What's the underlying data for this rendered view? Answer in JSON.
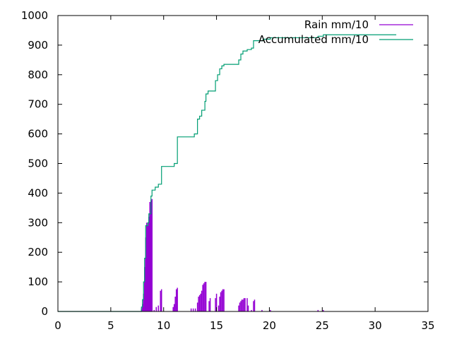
{
  "chart_data": {
    "type": "area",
    "title": "",
    "xlabel": "",
    "ylabel": "",
    "xlim": [
      0,
      35
    ],
    "ylim": [
      0,
      1000
    ],
    "x_ticks": [
      0,
      5,
      10,
      15,
      20,
      25,
      30,
      35
    ],
    "y_ticks": [
      0,
      100,
      200,
      300,
      400,
      500,
      600,
      700,
      800,
      900,
      1000
    ],
    "grid": false,
    "legend": "top-right",
    "series": [
      {
        "name": "Rain mm/10",
        "style": "impulses",
        "color": "#9400d3",
        "points": [
          [
            7.9,
            10
          ],
          [
            8.0,
            25
          ],
          [
            8.1,
            60
          ],
          [
            8.2,
            150
          ],
          [
            8.3,
            250
          ],
          [
            8.4,
            300
          ],
          [
            8.5,
            290
          ],
          [
            8.6,
            320
          ],
          [
            8.7,
            370
          ],
          [
            8.8,
            375
          ],
          [
            8.9,
            380
          ],
          [
            9.1,
            5
          ],
          [
            9.3,
            15
          ],
          [
            9.5,
            20
          ],
          [
            9.7,
            70
          ],
          [
            9.8,
            75
          ],
          [
            10.9,
            15
          ],
          [
            11.0,
            25
          ],
          [
            11.1,
            50
          ],
          [
            11.2,
            75
          ],
          [
            11.3,
            80
          ],
          [
            12.6,
            10
          ],
          [
            12.8,
            10
          ],
          [
            13.0,
            10
          ],
          [
            13.2,
            30
          ],
          [
            13.3,
            50
          ],
          [
            13.4,
            55
          ],
          [
            13.5,
            60
          ],
          [
            13.6,
            70
          ],
          [
            13.7,
            90
          ],
          [
            13.8,
            95
          ],
          [
            13.9,
            100
          ],
          [
            14.0,
            100
          ],
          [
            14.3,
            35
          ],
          [
            14.4,
            45
          ],
          [
            14.9,
            45
          ],
          [
            15.0,
            60
          ],
          [
            15.2,
            20
          ],
          [
            15.3,
            50
          ],
          [
            15.4,
            65
          ],
          [
            15.5,
            70
          ],
          [
            15.6,
            75
          ],
          [
            15.7,
            75
          ],
          [
            17.1,
            20
          ],
          [
            17.2,
            30
          ],
          [
            17.3,
            35
          ],
          [
            17.4,
            40
          ],
          [
            17.5,
            40
          ],
          [
            17.6,
            45
          ],
          [
            17.7,
            45
          ],
          [
            17.9,
            45
          ],
          [
            18.0,
            20
          ],
          [
            18.3,
            5
          ],
          [
            18.5,
            35
          ],
          [
            18.6,
            40
          ],
          [
            19.3,
            5
          ],
          [
            20.1,
            5
          ],
          [
            24.6,
            5
          ],
          [
            25.1,
            5
          ]
        ]
      },
      {
        "name": "Accumulated mm/10",
        "style": "steps",
        "color": "#009e73",
        "points": [
          [
            0,
            0
          ],
          [
            7.8,
            0
          ],
          [
            7.9,
            15
          ],
          [
            8.0,
            40
          ],
          [
            8.1,
            100
          ],
          [
            8.2,
            180
          ],
          [
            8.3,
            290
          ],
          [
            8.5,
            300
          ],
          [
            8.6,
            330
          ],
          [
            8.8,
            390
          ],
          [
            8.9,
            410
          ],
          [
            9.2,
            420
          ],
          [
            9.5,
            430
          ],
          [
            9.8,
            490
          ],
          [
            11.0,
            500
          ],
          [
            11.3,
            590
          ],
          [
            12.9,
            600
          ],
          [
            13.2,
            650
          ],
          [
            13.4,
            660
          ],
          [
            13.6,
            680
          ],
          [
            13.9,
            710
          ],
          [
            14.0,
            735
          ],
          [
            14.2,
            745
          ],
          [
            14.9,
            780
          ],
          [
            15.1,
            800
          ],
          [
            15.3,
            820
          ],
          [
            15.5,
            830
          ],
          [
            15.7,
            835
          ],
          [
            17.1,
            850
          ],
          [
            17.3,
            870
          ],
          [
            17.5,
            880
          ],
          [
            17.9,
            885
          ],
          [
            18.3,
            890
          ],
          [
            18.5,
            915
          ],
          [
            19.4,
            920
          ],
          [
            20.1,
            925
          ],
          [
            24.6,
            930
          ],
          [
            25.1,
            935
          ],
          [
            32.0,
            935
          ]
        ]
      }
    ]
  }
}
